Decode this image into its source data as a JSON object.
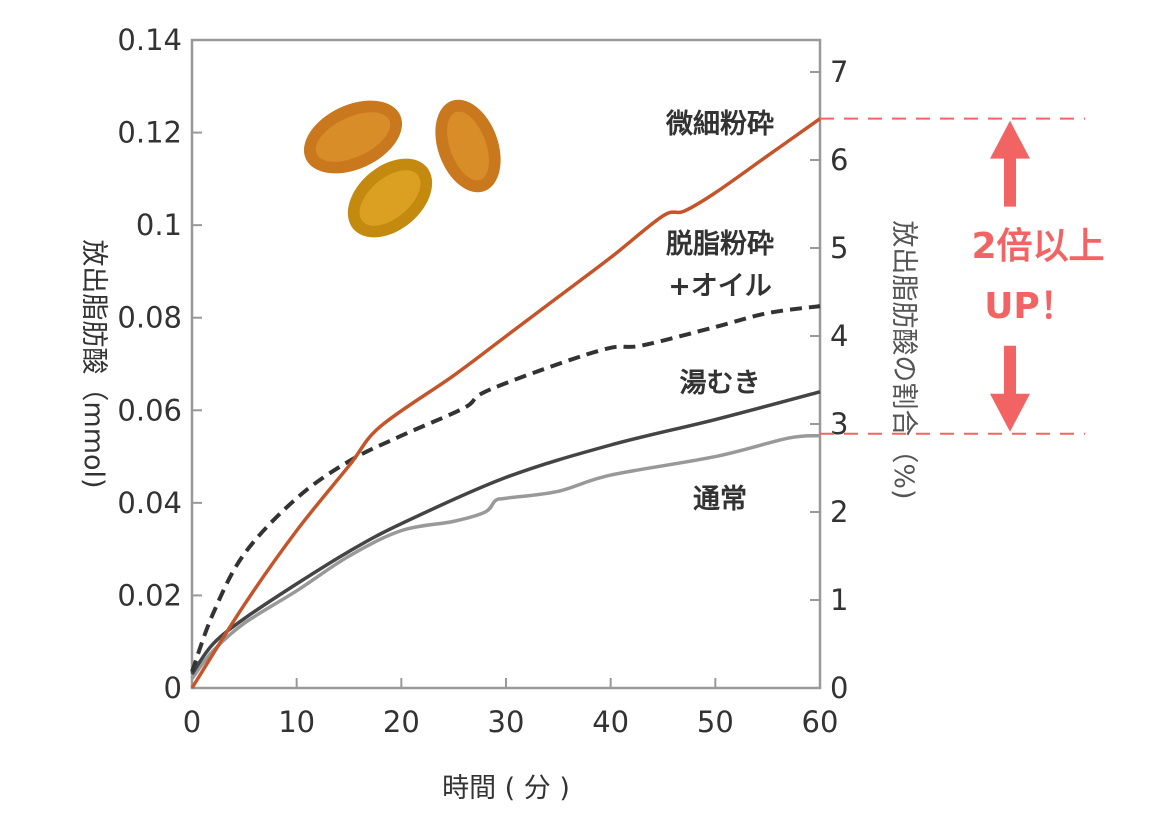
{
  "chart_data": {
    "type": "line",
    "xlabel": "時間 ( 分 )",
    "ylabel": "放出脂肪酸（mmol)",
    "y2label": "放出脂肪酸の割合（%)",
    "xlim": [
      0,
      60
    ],
    "ylim": [
      0,
      0.14
    ],
    "y2lim": [
      0,
      7
    ],
    "xticks": [
      "0",
      "10",
      "20",
      "30",
      "40",
      "50",
      "60"
    ],
    "yticks": [
      "0",
      "0.02",
      "0.04",
      "0.06",
      "0.08",
      "0.1",
      "0.12",
      "0.14"
    ],
    "y2ticks": [
      "0",
      "1",
      "2",
      "3",
      "4",
      "5",
      "6",
      "7"
    ],
    "grid": false,
    "series": [
      {
        "name": "微細粉砕",
        "color": "#c4552b",
        "style": "solid",
        "x": [
          0,
          5,
          10,
          15,
          18,
          25,
          30,
          35,
          40,
          45,
          47,
          50,
          55,
          60
        ],
        "y": [
          0,
          0.018,
          0.034,
          0.048,
          0.0565,
          0.0675,
          0.076,
          0.0845,
          0.093,
          0.102,
          0.103,
          0.107,
          0.115,
          0.123
        ]
      },
      {
        "name": "脱脂粉砕\n+オイル",
        "label_lines": [
          "脱脂粉砕",
          "+オイル"
        ],
        "color": "#333333",
        "style": "dashed",
        "x": [
          0,
          2,
          5,
          10,
          15,
          20,
          26,
          28,
          35,
          40,
          43,
          50,
          55,
          60
        ],
        "y": [
          0.0035,
          0.016,
          0.029,
          0.041,
          0.049,
          0.0545,
          0.0605,
          0.064,
          0.07,
          0.0735,
          0.074,
          0.078,
          0.081,
          0.0825
        ]
      },
      {
        "name": "湯むき",
        "color": "#444444",
        "style": "solid",
        "x": [
          0,
          2,
          5,
          10,
          15,
          20,
          30,
          40,
          50,
          60
        ],
        "y": [
          0.003,
          0.0095,
          0.015,
          0.0225,
          0.0295,
          0.0355,
          0.0455,
          0.0525,
          0.058,
          0.064
        ]
      },
      {
        "name": "通常",
        "color": "#999999",
        "style": "solid",
        "x": [
          0,
          2,
          5,
          10,
          15,
          20,
          25,
          28,
          29,
          30,
          35,
          40,
          50,
          57,
          60
        ],
        "y": [
          0.002,
          0.008,
          0.014,
          0.021,
          0.0285,
          0.034,
          0.036,
          0.038,
          0.0405,
          0.041,
          0.0425,
          0.046,
          0.05,
          0.054,
          0.0545
        ]
      }
    ],
    "annotation": {
      "text_lines": [
        "2倍以上",
        "UP！"
      ],
      "color": "#f26363",
      "from_value": 0.123,
      "to_value": 0.0545
    }
  }
}
